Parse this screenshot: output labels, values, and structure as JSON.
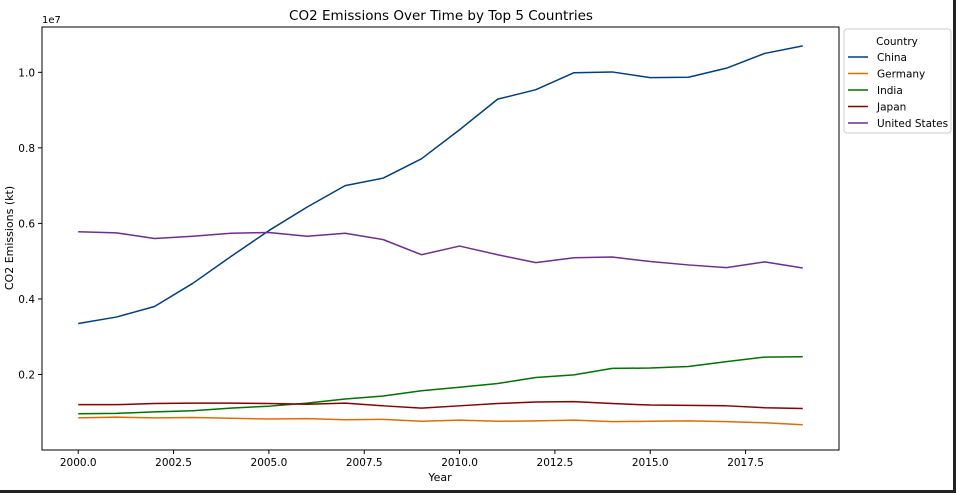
{
  "chart_data": {
    "type": "line",
    "title": "CO2 Emissions Over Time by Top 5 Countries",
    "xlabel": "Year",
    "ylabel": "CO2 Emissions (kt)",
    "y_offset_label": "1e7",
    "xlim": [
      1999.05,
      2019.95
    ],
    "ylim": [
      0,
      11200000
    ],
    "x_ticks": [
      2000,
      2002.5,
      2005,
      2007.5,
      2010,
      2012.5,
      2015,
      2017.5
    ],
    "x_tick_labels": [
      "2000.0",
      "2002.5",
      "2005.0",
      "2007.5",
      "2010.0",
      "2012.5",
      "2015.0",
      "2017.5"
    ],
    "y_ticks": [
      2000000,
      4000000,
      6000000,
      8000000,
      10000000
    ],
    "y_tick_labels": [
      "0.2",
      "0.4",
      "0.6",
      "0.8",
      "1.0"
    ],
    "grid": false,
    "legend": {
      "title": "Country",
      "placement": "top-right-outside"
    },
    "x": [
      2000,
      2001,
      2002,
      2003,
      2004,
      2005,
      2006,
      2007,
      2008,
      2009,
      2010,
      2011,
      2012,
      2013,
      2014,
      2015,
      2016,
      2017,
      2018,
      2019
    ],
    "series": [
      {
        "name": "China",
        "color": "#003f7f",
        "values": [
          3350000,
          3520000,
          3800000,
          4410000,
          5120000,
          5810000,
          6430000,
          7000000,
          7200000,
          7710000,
          8480000,
          9290000,
          9540000,
          9990000,
          10010000,
          9860000,
          9870000,
          10110000,
          10500000,
          10700000
        ]
      },
      {
        "name": "Germany",
        "color": "#e36c00",
        "values": [
          850000,
          870000,
          850000,
          860000,
          840000,
          820000,
          830000,
          800000,
          810000,
          760000,
          790000,
          760000,
          770000,
          790000,
          750000,
          760000,
          770000,
          750000,
          720000,
          670000
        ]
      },
      {
        "name": "India",
        "color": "#007300",
        "values": [
          960000,
          970000,
          1010000,
          1040000,
          1110000,
          1160000,
          1240000,
          1350000,
          1430000,
          1570000,
          1660000,
          1760000,
          1920000,
          1990000,
          2160000,
          2170000,
          2210000,
          2340000,
          2460000,
          2470000
        ]
      },
      {
        "name": "Japan",
        "color": "#8b0000",
        "values": [
          1200000,
          1200000,
          1230000,
          1240000,
          1240000,
          1230000,
          1210000,
          1240000,
          1170000,
          1110000,
          1170000,
          1230000,
          1270000,
          1280000,
          1230000,
          1190000,
          1180000,
          1170000,
          1120000,
          1100000
        ]
      },
      {
        "name": "United States",
        "color": "#6f2d8f",
        "values": [
          5780000,
          5750000,
          5600000,
          5660000,
          5740000,
          5760000,
          5660000,
          5740000,
          5570000,
          5170000,
          5400000,
          5170000,
          4960000,
          5090000,
          5110000,
          4990000,
          4900000,
          4830000,
          4980000,
          4820000
        ]
      }
    ]
  }
}
